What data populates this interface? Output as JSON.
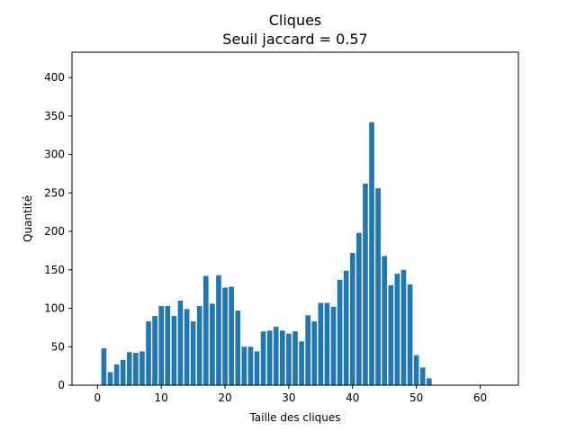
{
  "chart_data": {
    "type": "bar",
    "title": "Cliques",
    "subtitle": "Seuil jaccard = 0.57",
    "xlabel": "Taille des cliques",
    "ylabel": "Quantité",
    "xlim": [
      -4,
      66
    ],
    "ylim": [
      0,
      433
    ],
    "xticks": [
      0,
      10,
      20,
      30,
      40,
      50,
      60
    ],
    "yticks": [
      0,
      50,
      100,
      150,
      200,
      250,
      300,
      350,
      400
    ],
    "grid": false,
    "bar_color": "#1f77b4",
    "x": [
      1,
      2,
      3,
      4,
      5,
      6,
      7,
      8,
      9,
      10,
      11,
      12,
      13,
      14,
      15,
      16,
      17,
      18,
      19,
      20,
      21,
      22,
      23,
      24,
      25,
      26,
      27,
      28,
      29,
      30,
      31,
      32,
      33,
      34,
      35,
      36,
      37,
      38,
      39,
      40,
      41,
      42,
      43,
      44,
      45,
      46,
      47,
      48,
      49,
      50,
      51,
      52
    ],
    "values": [
      48,
      17,
      27,
      33,
      43,
      42,
      44,
      83,
      90,
      103,
      103,
      90,
      110,
      99,
      83,
      103,
      142,
      106,
      143,
      127,
      128,
      97,
      50,
      50,
      44,
      70,
      71,
      76,
      71,
      67,
      70,
      57,
      91,
      83,
      107,
      107,
      102,
      137,
      149,
      172,
      198,
      262,
      342,
      256,
      168,
      130,
      145,
      150,
      131,
      39,
      23,
      9
    ]
  }
}
